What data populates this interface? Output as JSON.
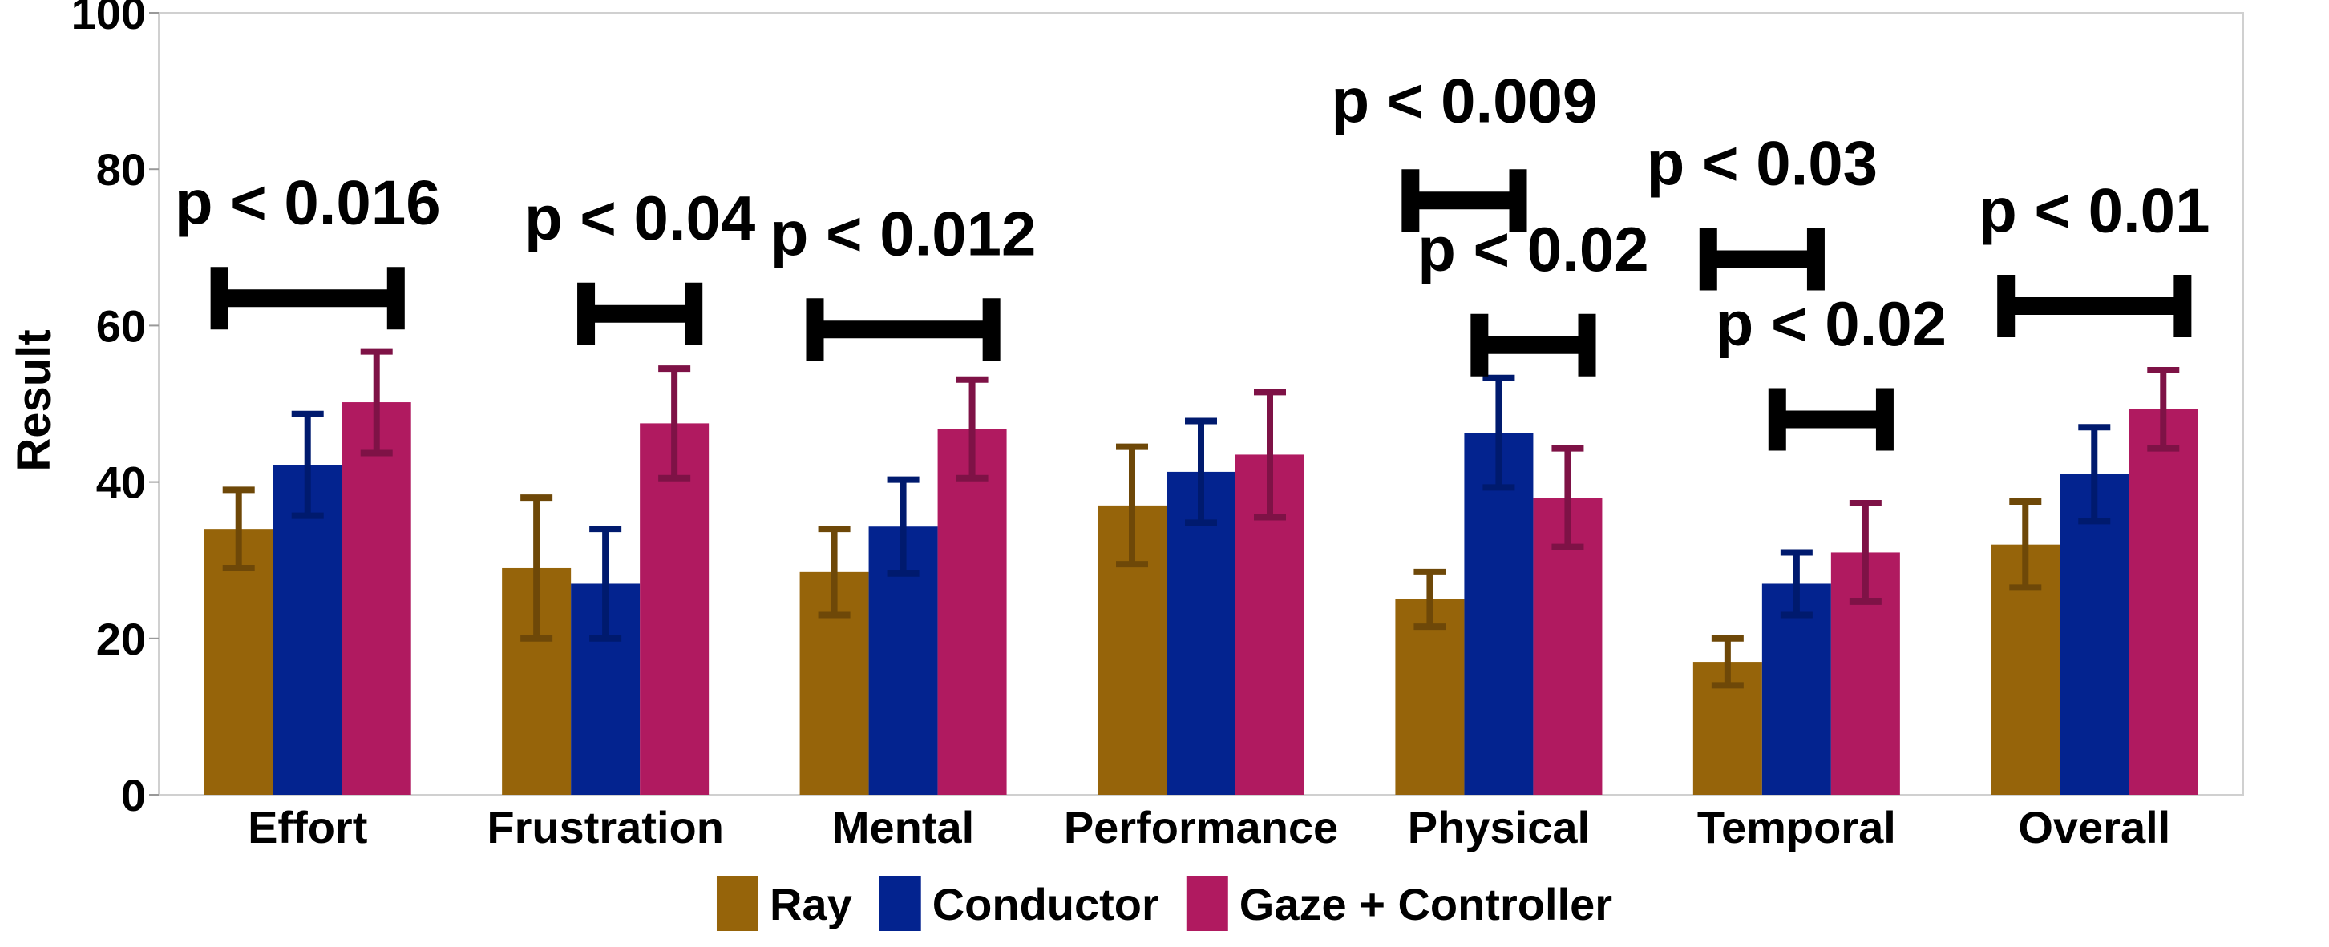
{
  "chart_data": {
    "type": "bar",
    "title": "",
    "xlabel": "",
    "ylabel": "Result",
    "ylim": [
      0,
      100
    ],
    "yticks": [
      "0",
      "20",
      "40",
      "60",
      "80",
      "100"
    ],
    "grid": false,
    "legend_position": "bottom",
    "categories": [
      "Effort",
      "Frustration",
      "Mental",
      "Performance",
      "Physical",
      "Temporal",
      "Overall"
    ],
    "series": [
      {
        "name": "Ray",
        "color": "#96640a",
        "values": [
          34,
          29,
          28.5,
          37,
          25,
          17,
          32
        ],
        "errors": [
          5,
          9,
          5.5,
          7.5,
          3.5,
          3,
          5.5
        ]
      },
      {
        "name": "Conductor",
        "color": "#03238f",
        "values": [
          42.2,
          27,
          34.3,
          41.3,
          46.3,
          27,
          41
        ],
        "errors": [
          6.5,
          7,
          6,
          6.5,
          7,
          4,
          6
        ]
      },
      {
        "name": "Gaze + Controller",
        "color": "#b01a60",
        "values": [
          50.2,
          47.5,
          46.8,
          43.5,
          38,
          31,
          49.3
        ],
        "errors": [
          6.5,
          7,
          6.3,
          8,
          6.3,
          6.3,
          5
        ]
      }
    ],
    "error_bar_colors": [
      "#6e4808",
      "#001a6e",
      "#7e1246"
    ],
    "annotations": [
      {
        "text": "p < 0.016",
        "category": "Effort",
        "from_series": 0,
        "to_series": 2,
        "y": 63.5,
        "label_y": 73
      },
      {
        "text": "p < 0.04",
        "category": "Frustration",
        "from_series": 1,
        "to_series": 2,
        "y": 61.5,
        "label_y": 71
      },
      {
        "text": "p < 0.012",
        "category": "Mental",
        "from_series": 0,
        "to_series": 2,
        "y": 59.5,
        "label_y": 69
      },
      {
        "text": "p < 0.009",
        "category": "Physical",
        "from_series": 0,
        "to_series": 1,
        "y": 76,
        "label_y": 86
      },
      {
        "text": "p < 0.02",
        "category": "Physical",
        "from_series": 1,
        "to_series": 2,
        "y": 57.5,
        "label_y": 67
      },
      {
        "text": "p < 0.03",
        "category": "Temporal",
        "from_series": 0,
        "to_series": 1,
        "y": 68.5,
        "label_y": 78
      },
      {
        "text": "p < 0.02",
        "category": "Temporal",
        "from_series": 1,
        "to_series": 2,
        "y": 48,
        "label_y": 57.5
      },
      {
        "text": "p < 0.01",
        "category": "Overall",
        "from_series": 0,
        "to_series": 2,
        "y": 62.5,
        "label_y": 72
      }
    ]
  }
}
